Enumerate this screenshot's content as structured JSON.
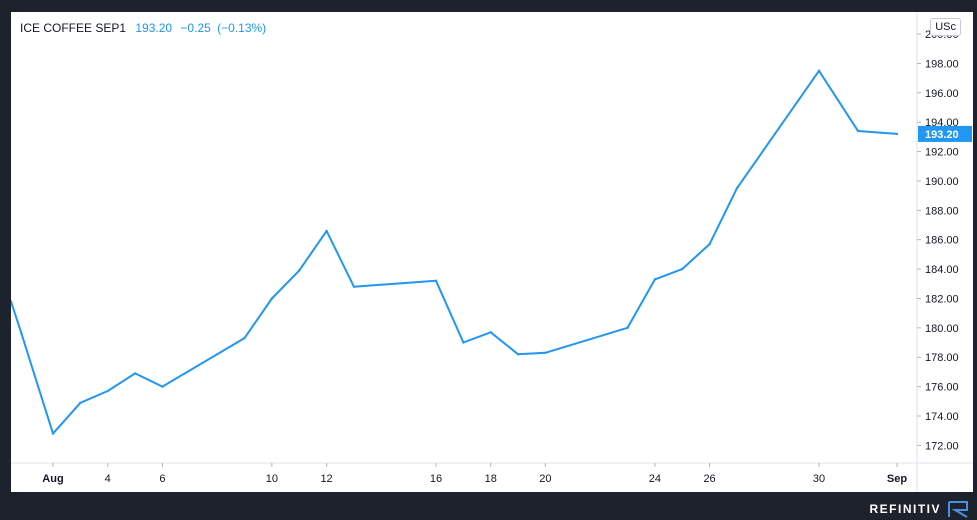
{
  "legend": {
    "symbol": "ICE COFFEE SEP1",
    "last": "193.20",
    "change": "−0.25",
    "change_pct": "(−0.13%)"
  },
  "currency_label": "USc",
  "brand": "REFINITIV",
  "colors": {
    "line": "#2196f3",
    "axis_text": "#131722",
    "background": "#ffffff",
    "frame": "#1e222d"
  },
  "chart_data": {
    "type": "line",
    "title": "",
    "xlabel": "",
    "ylabel": "",
    "ylim": [
      170.8,
      201.5
    ],
    "yticks": [
      172,
      174,
      176,
      178,
      180,
      182,
      184,
      186,
      188,
      190,
      192,
      194,
      196,
      198,
      200
    ],
    "ytick_labels": [
      "172.00",
      "174.00",
      "176.00",
      "178.00",
      "180.00",
      "182.00",
      "184.00",
      "186.00",
      "188.00",
      "190.00",
      "192.00",
      "194.00",
      "196.00",
      "198.00",
      "200.00"
    ],
    "x_tick_labels": [
      {
        "label": "Aug",
        "date": "2021-08-02"
      },
      {
        "label": "4",
        "date": "2021-08-04"
      },
      {
        "label": "6",
        "date": "2021-08-06"
      },
      {
        "label": "10",
        "date": "2021-08-10"
      },
      {
        "label": "12",
        "date": "2021-08-12"
      },
      {
        "label": "16",
        "date": "2021-08-16"
      },
      {
        "label": "18",
        "date": "2021-08-18"
      },
      {
        "label": "20",
        "date": "2021-08-20"
      },
      {
        "label": "24",
        "date": "2021-08-24"
      },
      {
        "label": "26",
        "date": "2021-08-26"
      },
      {
        "label": "30",
        "date": "2021-08-30"
      },
      {
        "label": "Sep",
        "date": "2021-09-01"
      }
    ],
    "series": [
      {
        "x": [
          "2021-07-29",
          "2021-07-30",
          "2021-08-02",
          "2021-08-03",
          "2021-08-04",
          "2021-08-05",
          "2021-08-06",
          "2021-08-09",
          "2021-08-10",
          "2021-08-11",
          "2021-08-12",
          "2021-08-13",
          "2021-08-16",
          "2021-08-17",
          "2021-08-18",
          "2021-08-19",
          "2021-08-20",
          "2021-08-23",
          "2021-08-24",
          "2021-08-25",
          "2021-08-26",
          "2021-08-27",
          "2021-08-30",
          "2021-08-31",
          "2021-09-01"
        ],
        "values": [
          181.8,
          179.6,
          172.8,
          174.9,
          175.7,
          176.9,
          176.0,
          179.3,
          182.0,
          183.9,
          186.6,
          182.8,
          183.2,
          179.0,
          179.7,
          178.2,
          178.3,
          180.0,
          183.3,
          184.0,
          185.7,
          189.5,
          197.5,
          193.4,
          193.2
        ]
      }
    ],
    "last_value_label": "193.20",
    "grid": false,
    "legend_position": "top-left"
  }
}
